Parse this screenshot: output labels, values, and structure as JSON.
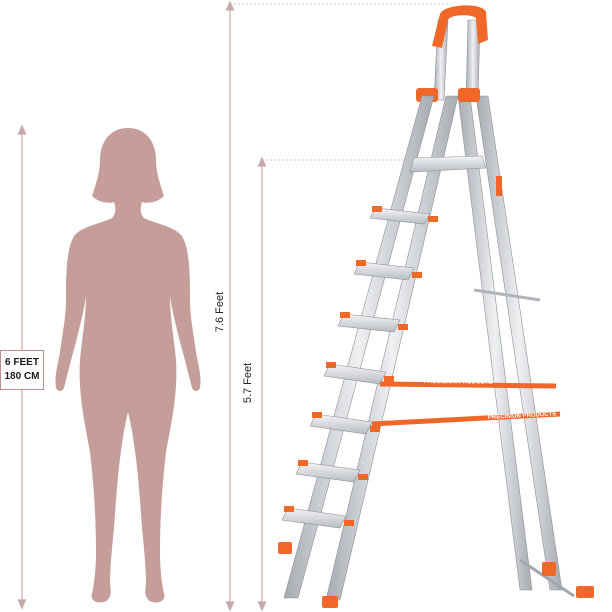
{
  "person_height": {
    "line1": "6 FEET",
    "line2": "180 CM"
  },
  "ladder_total_height": "7.6 Feet",
  "ladder_platform_height": "5.7 Feet",
  "brand_strap_text": "PRECISION PRODUCTS",
  "colors": {
    "silhouette": "#c59e9a",
    "aluminium": "#d6d8dc",
    "aluminium_dark": "#9ea3aa",
    "accent_orange": "#f0672a",
    "dimension_line": "#c7a9a6"
  }
}
